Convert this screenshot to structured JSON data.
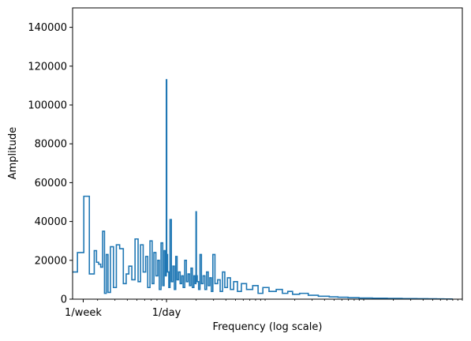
{
  "chart_data": {
    "type": "line",
    "title": "",
    "xlabel": "Frequency (log scale)",
    "ylabel": "Amplitude",
    "x_scale": "log",
    "x_unit": "cycles per day",
    "xlim": [
      0.1115,
      1000
    ],
    "ylim": [
      0,
      150000
    ],
    "grid": false,
    "legend": "none",
    "colors": {
      "series": "#1f77b4",
      "axes": "#000000",
      "background": "#ffffff"
    },
    "y_ticks": [
      {
        "value": 0,
        "label": "0"
      },
      {
        "value": 20000,
        "label": "20000"
      },
      {
        "value": 40000,
        "label": "40000"
      },
      {
        "value": 60000,
        "label": "60000"
      },
      {
        "value": 80000,
        "label": "80000"
      },
      {
        "value": 100000,
        "label": "100000"
      },
      {
        "value": 120000,
        "label": "120000"
      },
      {
        "value": 140000,
        "label": "140000"
      }
    ],
    "x_ticks": [
      {
        "value": 0.1429,
        "label": "1/week"
      },
      {
        "value": 1,
        "label": "1/day"
      }
    ],
    "series": [
      {
        "step": "mid",
        "x": [
          0.1,
          0.12,
          0.13,
          0.14,
          0.15,
          0.16,
          0.17,
          0.18,
          0.19,
          0.2,
          0.21,
          0.22,
          0.23,
          0.24,
          0.25,
          0.26,
          0.28,
          0.3,
          0.32,
          0.35,
          0.38,
          0.4,
          0.43,
          0.46,
          0.5,
          0.53,
          0.56,
          0.6,
          0.63,
          0.66,
          0.7,
          0.73,
          0.76,
          0.8,
          0.83,
          0.86,
          0.9,
          0.93,
          0.96,
          0.99,
          1.0,
          1.01,
          1.04,
          1.07,
          1.1,
          1.14,
          1.18,
          1.22,
          1.26,
          1.3,
          1.35,
          1.4,
          1.45,
          1.5,
          1.56,
          1.62,
          1.68,
          1.74,
          1.8,
          1.86,
          1.93,
          1.98,
          2.0,
          2.02,
          2.08,
          2.15,
          2.22,
          2.3,
          2.4,
          2.5,
          2.6,
          2.7,
          2.8,
          2.9,
          3.0,
          3.2,
          3.4,
          3.6,
          3.8,
          4.0,
          4.3,
          4.6,
          5.0,
          5.5,
          6,
          7,
          8,
          9,
          10,
          12,
          14,
          16,
          18,
          20,
          25,
          30,
          40,
          50,
          60,
          80,
          100,
          150,
          200,
          300,
          400,
          500,
          600,
          700,
          800
        ],
        "y": [
          14000,
          14000,
          24000,
          24000,
          53000,
          53000,
          13000,
          13000,
          25000,
          19000,
          18000,
          16500,
          35000,
          3000,
          23000,
          3500,
          27000,
          6000,
          28000,
          26000,
          8000,
          13000,
          17000,
          10000,
          31000,
          9000,
          28000,
          14000,
          22000,
          6000,
          30000,
          8000,
          24000,
          12000,
          20000,
          5000,
          29000,
          7000,
          25000,
          12000,
          113000,
          23000,
          14000,
          6000,
          41000,
          9000,
          17000,
          5000,
          22000,
          10000,
          14000,
          8000,
          12000,
          6000,
          20000,
          9000,
          13000,
          7000,
          16000,
          6000,
          12000,
          8000,
          45000,
          12000,
          9000,
          5000,
          23000,
          8000,
          12000,
          5000,
          14000,
          7000,
          11000,
          4000,
          23000,
          8000,
          10000,
          4000,
          14000,
          6000,
          11000,
          5000,
          9000,
          4000,
          8000,
          5000,
          7000,
          3000,
          6000,
          4000,
          5000,
          3000,
          4000,
          2500,
          3000,
          2000,
          1500,
          1200,
          1000,
          800,
          600,
          500,
          400,
          300,
          250,
          200,
          150,
          100,
          80
        ]
      }
    ]
  }
}
